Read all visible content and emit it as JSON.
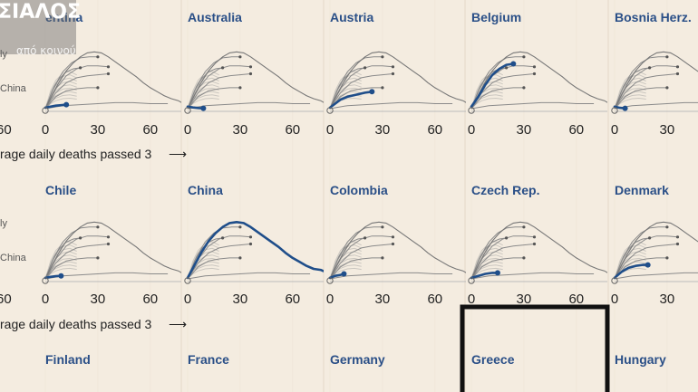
{
  "overlay": {
    "logo": "ΣΙΑΛΟΣ",
    "subtitle": "από κοινού"
  },
  "colors": {
    "background": "#f4ece0",
    "highlight": "#1f4e8a",
    "grey": "#8a8a8a",
    "lightgrey": "#c9c6c0",
    "title": "#2a4f87",
    "box": "#111111"
  },
  "side_labels": {
    "top": "ly",
    "china": "China"
  },
  "captions": {
    "row1": "rage daily deaths passed 3",
    "row2": "rage daily deaths passed 3",
    "arrow": "⟶"
  },
  "left_edge_ticks": [
    "60",
    "60"
  ],
  "chart_data": [
    {
      "type": "line",
      "title": "Argentina",
      "shown_title": "entina",
      "xticks": [
        "0",
        "30",
        "60"
      ],
      "highlight": [
        [
          0,
          1
        ],
        [
          3,
          2
        ],
        [
          6,
          3
        ],
        [
          9,
          3.5
        ],
        [
          12,
          4
        ]
      ]
    },
    {
      "type": "line",
      "title": "Australia",
      "shown_title": "Australia",
      "xticks": [
        "0",
        "30",
        "60"
      ],
      "highlight": [
        [
          0,
          2
        ],
        [
          3,
          1.2
        ],
        [
          6,
          0.6
        ],
        [
          9,
          0.3
        ]
      ]
    },
    {
      "type": "line",
      "title": "Austria",
      "shown_title": "Austria",
      "xticks": [
        "0",
        "30",
        "60"
      ],
      "highlight": [
        [
          0,
          1
        ],
        [
          3,
          5
        ],
        [
          6,
          9
        ],
        [
          10,
          12
        ],
        [
          15,
          14
        ],
        [
          20,
          16
        ],
        [
          24,
          17
        ]
      ]
    },
    {
      "type": "line",
      "title": "Belgium",
      "shown_title": "Belgium",
      "xticks": [
        "0",
        "30",
        "60"
      ],
      "highlight": [
        [
          0,
          2
        ],
        [
          4,
          12
        ],
        [
          8,
          24
        ],
        [
          12,
          34
        ],
        [
          16,
          40
        ],
        [
          20,
          44
        ],
        [
          24,
          45
        ]
      ]
    },
    {
      "type": "line",
      "title": "Bosnia Herz.",
      "shown_title": "Bosnia Herz.",
      "xticks": [
        "0",
        "30"
      ],
      "highlight": [
        [
          0,
          2
        ],
        [
          3,
          0.8
        ],
        [
          6,
          0.3
        ]
      ]
    },
    {
      "type": "line",
      "title": "Chile",
      "shown_title": "Chile",
      "xticks": [
        "0",
        "30",
        "60"
      ],
      "highlight": [
        [
          0,
          1
        ],
        [
          3,
          2
        ],
        [
          6,
          2.6
        ],
        [
          9,
          3
        ]
      ]
    },
    {
      "type": "line",
      "title": "China",
      "shown_title": "China",
      "xticks": [
        "0",
        "30",
        "60"
      ],
      "highlight": [
        [
          0,
          1
        ],
        [
          4,
          14
        ],
        [
          8,
          27
        ],
        [
          12,
          38
        ],
        [
          16,
          46
        ],
        [
          20,
          52
        ],
        [
          24,
          56
        ],
        [
          28,
          57
        ],
        [
          32,
          56
        ],
        [
          36,
          52
        ],
        [
          40,
          47
        ],
        [
          44,
          42
        ],
        [
          48,
          37
        ],
        [
          52,
          32
        ],
        [
          56,
          26
        ],
        [
          60,
          21
        ],
        [
          64,
          17
        ],
        [
          68,
          13
        ],
        [
          72,
          10
        ],
        [
          76,
          9
        ],
        [
          80,
          6
        ],
        [
          83,
          1
        ]
      ]
    },
    {
      "type": "line",
      "title": "Colombia",
      "shown_title": "Colombia",
      "xticks": [
        "0",
        "30",
        "60"
      ],
      "highlight": [
        [
          0,
          1
        ],
        [
          3,
          3
        ],
        [
          6,
          4
        ],
        [
          8,
          5
        ]
      ]
    },
    {
      "type": "line",
      "title": "Czech Rep.",
      "shown_title": "Czech Rep.",
      "xticks": [
        "0",
        "30",
        "60"
      ],
      "highlight": [
        [
          0,
          1
        ],
        [
          4,
          3
        ],
        [
          8,
          5
        ],
        [
          12,
          6
        ],
        [
          15,
          6
        ]
      ]
    },
    {
      "type": "line",
      "title": "Denmark",
      "shown_title": "Denmark",
      "xticks": [
        "0",
        "30"
      ],
      "highlight": [
        [
          0,
          1
        ],
        [
          4,
          7
        ],
        [
          8,
          11
        ],
        [
          12,
          13
        ],
        [
          16,
          14
        ],
        [
          19,
          14
        ]
      ]
    },
    {
      "type": "line",
      "title": "Finland",
      "shown_title": "Finland",
      "xticks": [],
      "highlight": []
    },
    {
      "type": "line",
      "title": "France",
      "shown_title": "France",
      "xticks": [],
      "highlight": []
    },
    {
      "type": "line",
      "title": "Germany",
      "shown_title": "Germany",
      "xticks": [],
      "highlight": []
    },
    {
      "type": "line",
      "title": "Greece",
      "shown_title": "Greece",
      "xticks": [],
      "highlight": [],
      "boxed": true
    },
    {
      "type": "line",
      "title": "Hungary",
      "shown_title": "Hungary",
      "xticks": [],
      "highlight": []
    }
  ]
}
